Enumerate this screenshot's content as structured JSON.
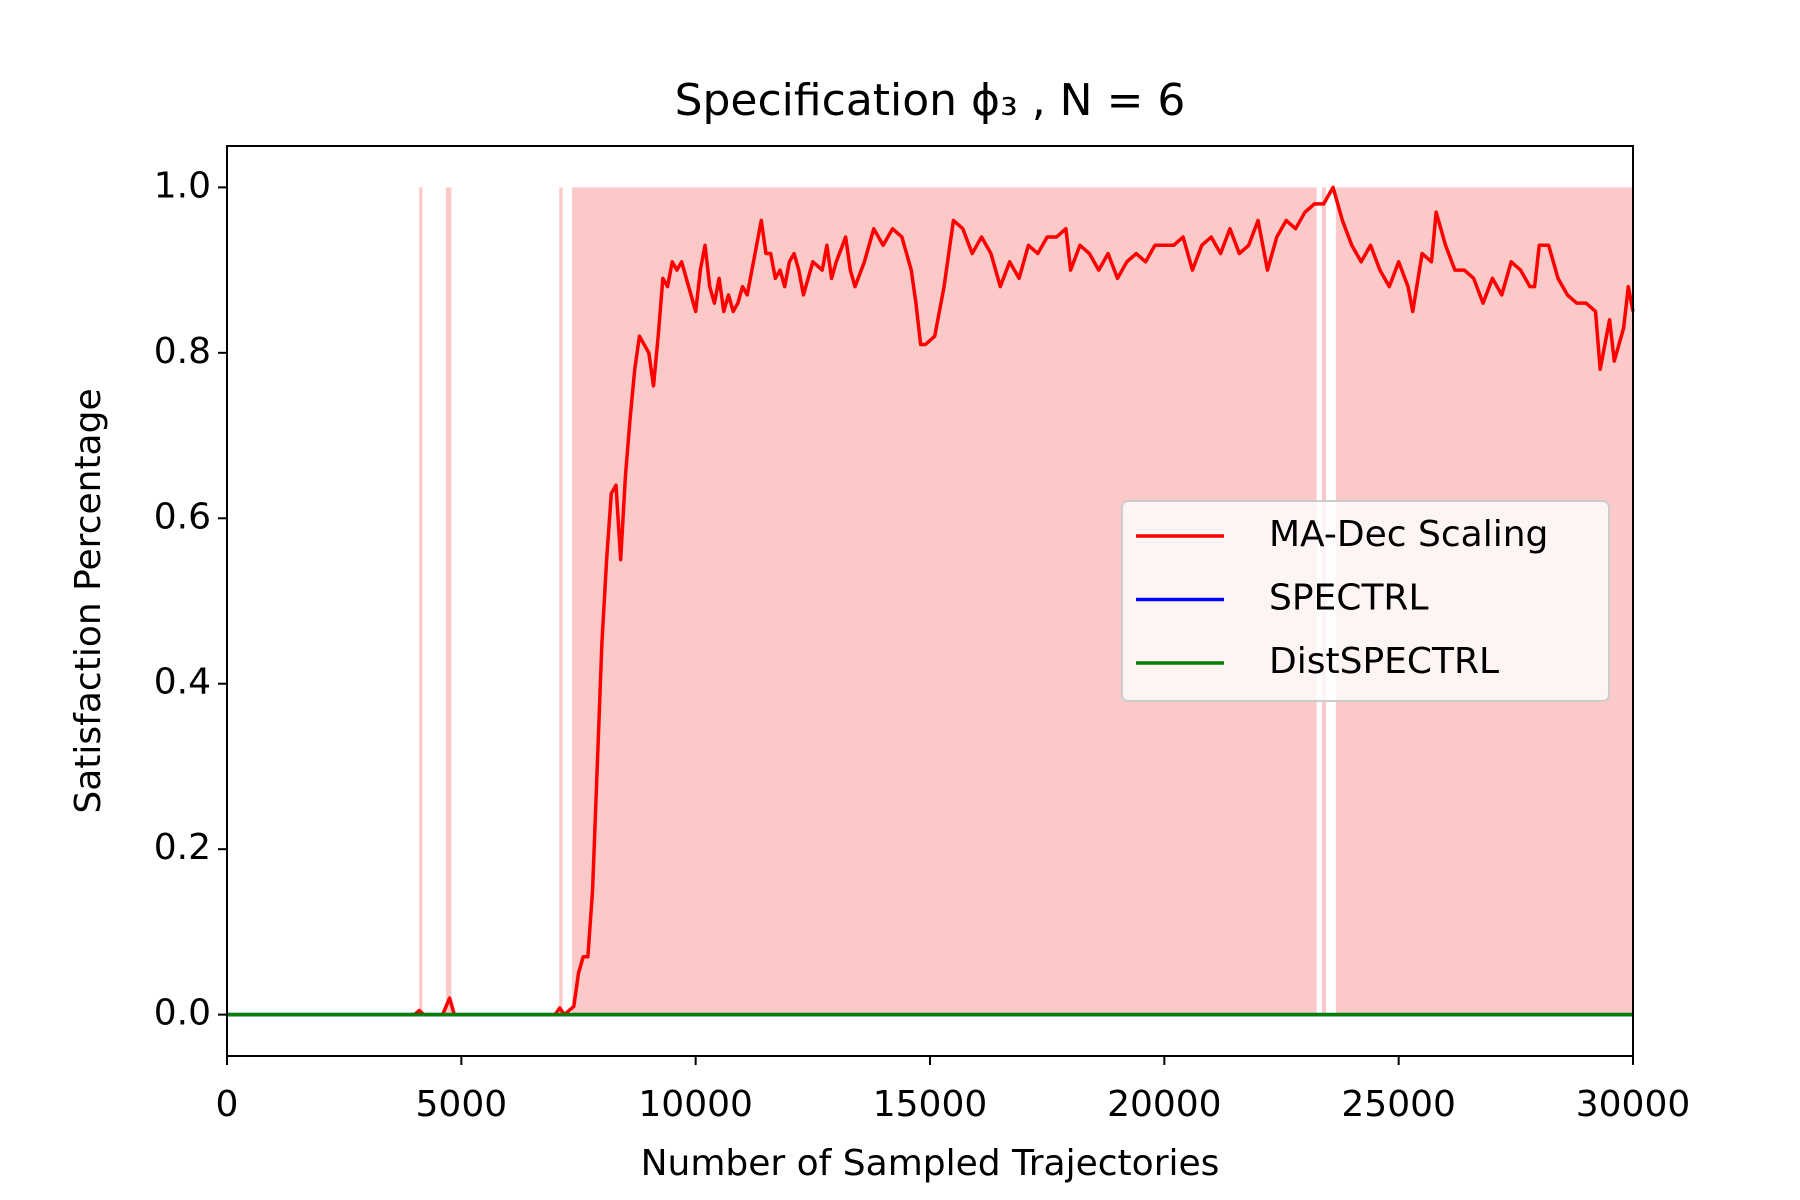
{
  "chart_data": {
    "type": "line",
    "title": "Specification ϕ₃ , N = 6",
    "x_label": "Number of Sampled Trajectories",
    "y_label": "Satisfaction Percentage",
    "xlim": [
      0,
      30000
    ],
    "ylim": [
      -0.05,
      1.05
    ],
    "xticks": [
      0,
      5000,
      10000,
      15000,
      20000,
      25000,
      30000
    ],
    "yticks": [
      {
        "value": 0,
        "label": "0.0"
      },
      0.2,
      0.4,
      0.6,
      0.8,
      {
        "value": 1,
        "label": "1.0"
      }
    ],
    "grid": false,
    "legend_position": "center right",
    "shaded_regions": {
      "color": "#fcc9c9",
      "y_range": [
        0,
        1
      ],
      "spans": [
        [
          4100,
          4170
        ],
        [
          4670,
          4790
        ],
        [
          7090,
          7160
        ],
        [
          7360,
          23250
        ],
        [
          23360,
          23450
        ],
        [
          23660,
          30000
        ]
      ]
    },
    "series": [
      {
        "name": "MA-Dec Scaling",
        "color": "#ff0000",
        "x": [
          0,
          4000,
          4100,
          4200,
          4600,
          4750,
          4850,
          7000,
          7100,
          7200,
          7400,
          7500,
          7600,
          7700,
          7800,
          7900,
          8000,
          8100,
          8200,
          8300,
          8400,
          8500,
          8600,
          8700,
          8800,
          8900,
          9000,
          9100,
          9200,
          9300,
          9400,
          9500,
          9600,
          9700,
          9800,
          9900,
          10000,
          10100,
          10200,
          10300,
          10400,
          10500,
          10600,
          10700,
          10800,
          10900,
          11000,
          11100,
          11200,
          11300,
          11400,
          11500,
          11600,
          11700,
          11800,
          11900,
          12000,
          12100,
          12200,
          12300,
          12500,
          12700,
          12800,
          12900,
          13000,
          13200,
          13300,
          13400,
          13600,
          13800,
          13900,
          14000,
          14200,
          14400,
          14600,
          14700,
          14800,
          14900,
          15100,
          15300,
          15500,
          15700,
          15900,
          16100,
          16300,
          16500,
          16700,
          16900,
          17100,
          17300,
          17500,
          17700,
          17900,
          18000,
          18200,
          18400,
          18600,
          18800,
          19000,
          19200,
          19400,
          19600,
          19800,
          20000,
          20200,
          20400,
          20600,
          20800,
          21000,
          21200,
          21400,
          21600,
          21800,
          22000,
          22200,
          22400,
          22600,
          22800,
          23000,
          23200,
          23400,
          23600,
          23800,
          24000,
          24200,
          24400,
          24600,
          24800,
          25000,
          25200,
          25300,
          25500,
          25700,
          25800,
          26000,
          26200,
          26400,
          26600,
          26800,
          27000,
          27200,
          27400,
          27600,
          27800,
          27900,
          28000,
          28200,
          28400,
          28600,
          28800,
          29000,
          29200,
          29300,
          29500,
          29600,
          29800,
          29900,
          30000
        ],
        "values": [
          0,
          0,
          0.005,
          0,
          0,
          0.02,
          0,
          0,
          0.008,
          0,
          0.01,
          0.05,
          0.07,
          0.07,
          0.15,
          0.3,
          0.45,
          0.55,
          0.63,
          0.64,
          0.55,
          0.65,
          0.72,
          0.78,
          0.82,
          0.81,
          0.8,
          0.76,
          0.82,
          0.89,
          0.88,
          0.91,
          0.9,
          0.91,
          0.89,
          0.87,
          0.85,
          0.9,
          0.93,
          0.88,
          0.86,
          0.89,
          0.85,
          0.87,
          0.85,
          0.86,
          0.88,
          0.87,
          0.9,
          0.93,
          0.96,
          0.92,
          0.92,
          0.89,
          0.9,
          0.88,
          0.91,
          0.92,
          0.9,
          0.87,
          0.91,
          0.9,
          0.93,
          0.89,
          0.91,
          0.94,
          0.9,
          0.88,
          0.91,
          0.95,
          0.94,
          0.93,
          0.95,
          0.94,
          0.9,
          0.86,
          0.81,
          0.81,
          0.82,
          0.88,
          0.96,
          0.95,
          0.92,
          0.94,
          0.92,
          0.88,
          0.91,
          0.89,
          0.93,
          0.92,
          0.94,
          0.94,
          0.95,
          0.9,
          0.93,
          0.92,
          0.9,
          0.92,
          0.89,
          0.91,
          0.92,
          0.91,
          0.93,
          0.93,
          0.93,
          0.94,
          0.9,
          0.93,
          0.94,
          0.92,
          0.95,
          0.92,
          0.93,
          0.96,
          0.9,
          0.94,
          0.96,
          0.95,
          0.97,
          0.98,
          0.98,
          1.0,
          0.96,
          0.93,
          0.91,
          0.93,
          0.9,
          0.88,
          0.91,
          0.88,
          0.85,
          0.92,
          0.91,
          0.97,
          0.93,
          0.9,
          0.9,
          0.89,
          0.86,
          0.89,
          0.87,
          0.91,
          0.9,
          0.88,
          0.88,
          0.93,
          0.93,
          0.89,
          0.87,
          0.86,
          0.86,
          0.85,
          0.78,
          0.84,
          0.79,
          0.83,
          0.88,
          0.85
        ]
      },
      {
        "name": "SPECTRL",
        "color": "#0000ff",
        "x": [
          0,
          30000
        ],
        "values": [
          0,
          0
        ]
      },
      {
        "name": "DistSPECTRL",
        "color": "#008000",
        "x": [
          0,
          30000
        ],
        "values": [
          0,
          0
        ]
      }
    ]
  }
}
